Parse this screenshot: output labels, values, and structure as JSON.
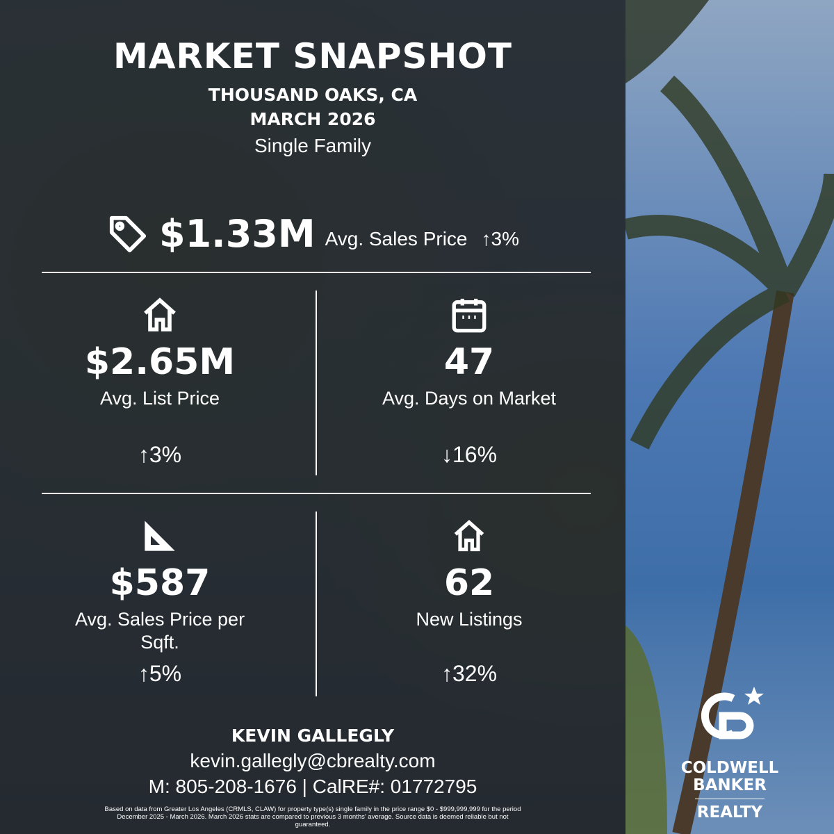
{
  "header": {
    "title": "MARKET SNAPSHOT",
    "location": "THOUSAND OAKS, CA",
    "period": "MARCH 2026",
    "property_type": "Single Family"
  },
  "headline": {
    "icon": "price-tag-icon",
    "value": "$1.33M",
    "label": "Avg. Sales Price",
    "change": "3%",
    "direction": "up"
  },
  "stats": [
    {
      "icon": "house-icon",
      "value": "$2.65M",
      "label": "Avg. List Price",
      "change": "3%",
      "direction": "up"
    },
    {
      "icon": "calendar-icon",
      "value": "47",
      "label": "Avg. Days on Market",
      "change": "16%",
      "direction": "down"
    },
    {
      "icon": "ruler-triangle-icon",
      "value": "$587",
      "label": "Avg. Sales Price per Sqft.",
      "change": "5%",
      "direction": "up"
    },
    {
      "icon": "house-icon",
      "value": "62",
      "label": "New Listings",
      "change": "32%",
      "direction": "up"
    }
  ],
  "agent": {
    "name": "KEVIN GALLEGLY",
    "email": "kevin.gallegly@cbrealty.com",
    "contact": "M: 805-208-1676 | CalRE#: 01772795"
  },
  "disclaimer": "Based on data from Greater Los Angeles (CRMLS, CLAW) for property type(s) single family in the price range $0 - $999,999,999 for the period December 2025 - March 2026. March 2026 stats are compared to previous 3 months' average. Source data is deemed reliable but not guaranteed.",
  "logo": {
    "monogram": "CB",
    "line1": "COLDWELL",
    "line2": "BANKER",
    "line3": "REALTY"
  },
  "arrows": {
    "up": "↑",
    "down": "↓"
  }
}
